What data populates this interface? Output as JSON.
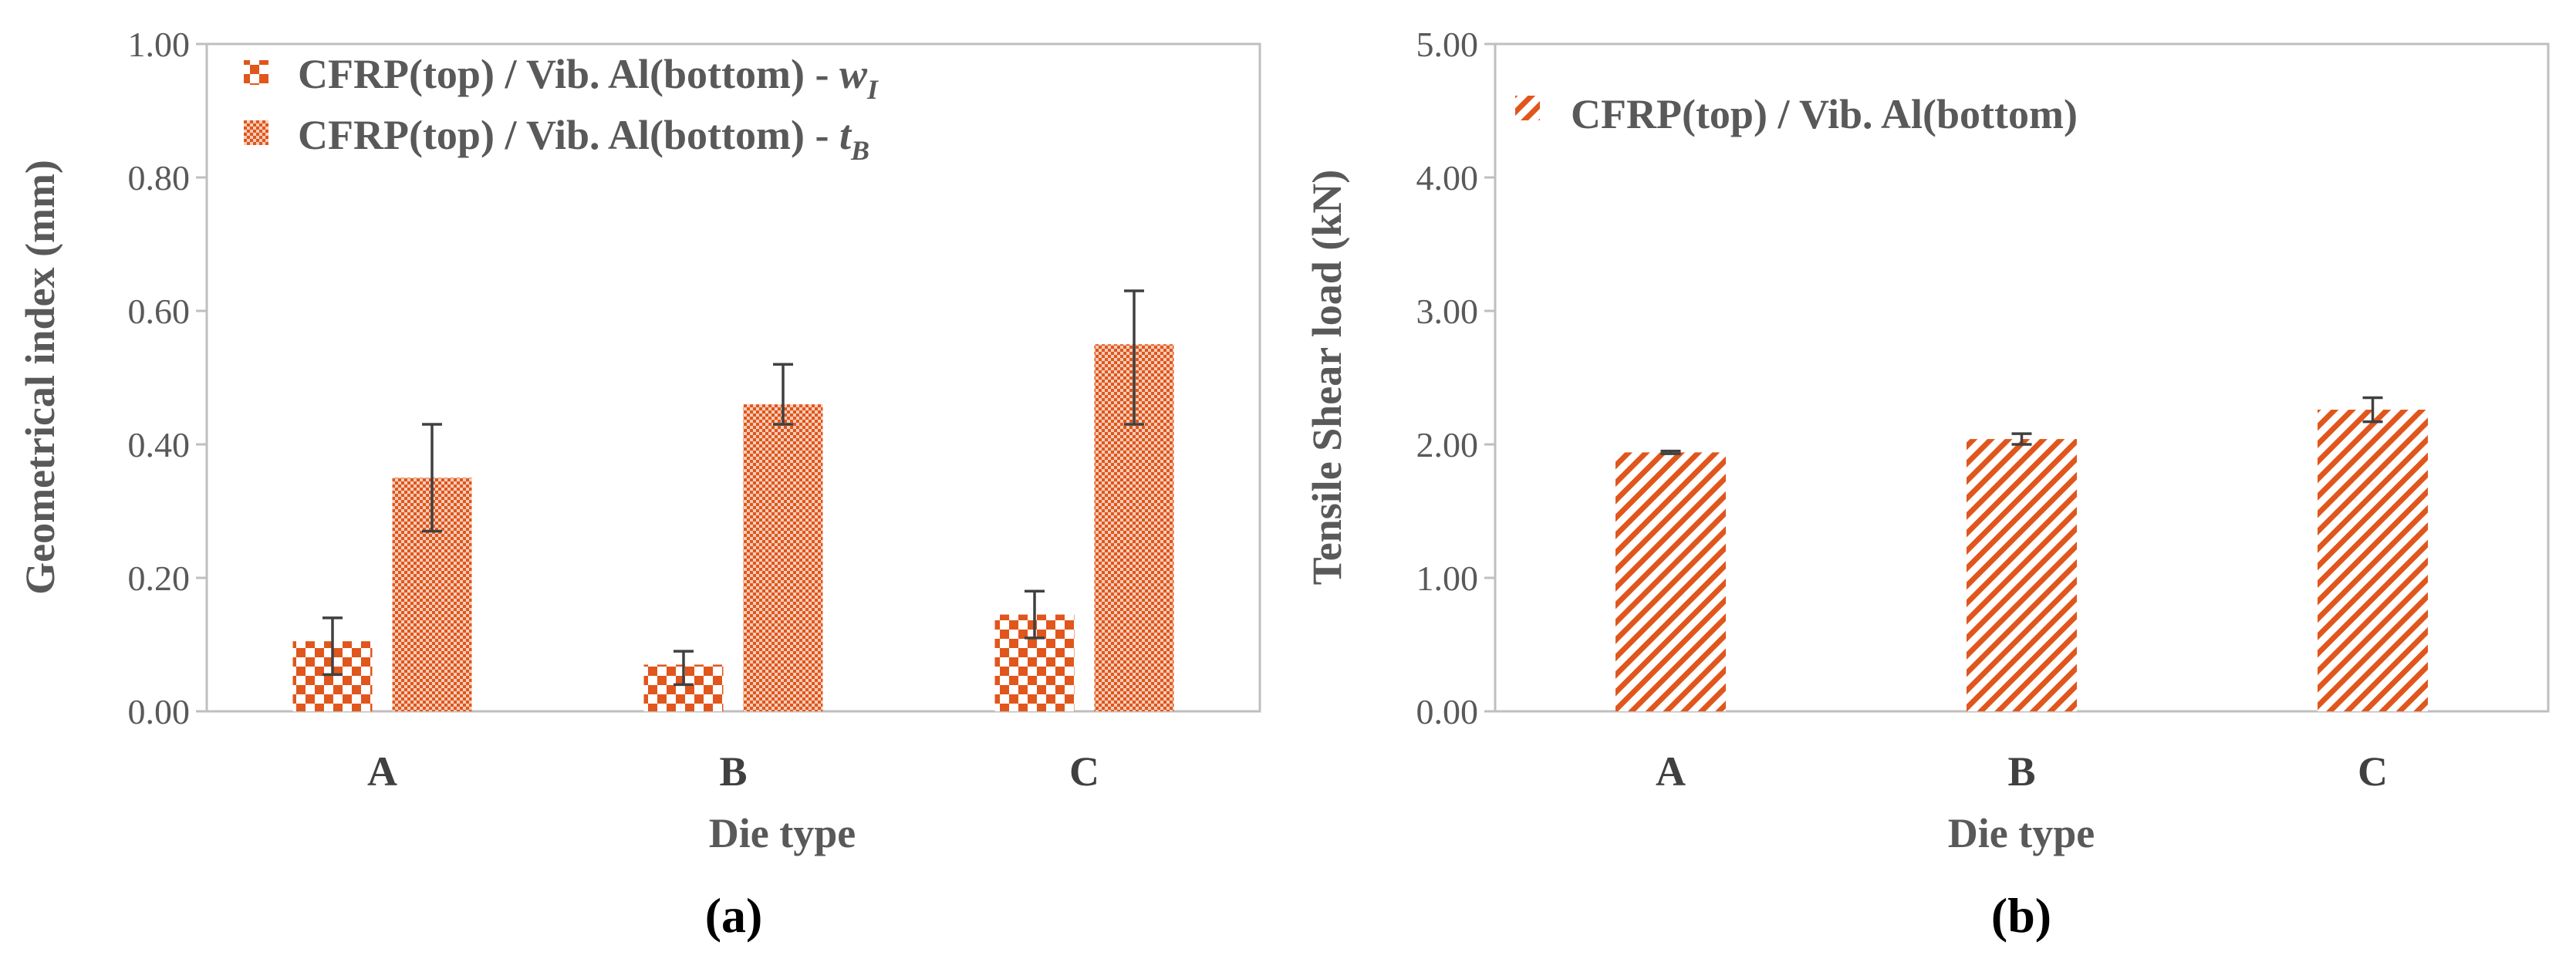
{
  "colors": {
    "series": "#e0561c",
    "axis": "#bfbfbf",
    "text": "#595959",
    "errorbar": "#404040"
  },
  "chart_data": [
    {
      "type": "bar",
      "panel_label": "(a)",
      "categories": [
        "A",
        "B",
        "C"
      ],
      "series": [
        {
          "name": "CFRP(top) / Vib. Al(bottom) - ",
          "symbol": "w",
          "subscript": "I",
          "pattern": "checker",
          "values": [
            0.105,
            0.07,
            0.145
          ],
          "err_low": [
            0.055,
            0.04,
            0.11
          ],
          "err_high": [
            0.14,
            0.09,
            0.18
          ]
        },
        {
          "name": "CFRP(top) / Vib. Al(bottom) - ",
          "symbol": "t",
          "subscript": "B",
          "pattern": "fine-checker",
          "values": [
            0.35,
            0.46,
            0.55
          ],
          "err_low": [
            0.27,
            0.43,
            0.43
          ],
          "err_high": [
            0.43,
            0.52,
            0.63
          ]
        }
      ],
      "xlabel": "Die type",
      "ylabel": "Geometrical index (mm)",
      "ylim": [
        0,
        1
      ],
      "yticks": [
        "0.00",
        "0.20",
        "0.40",
        "0.60",
        "0.80",
        "1.00"
      ],
      "legend_position": "top-left",
      "grid": false
    },
    {
      "type": "bar",
      "panel_label": "(b)",
      "categories": [
        "A",
        "B",
        "C"
      ],
      "series": [
        {
          "name": "CFRP(top) / Vib. Al(bottom)",
          "pattern": "diagonal-stripes",
          "values": [
            1.94,
            2.04,
            2.26
          ],
          "err_low": [
            1.93,
            2.0,
            2.17
          ],
          "err_high": [
            1.95,
            2.08,
            2.35
          ]
        }
      ],
      "xlabel": "Die type",
      "ylabel": "Tensile Shear load (kN)",
      "ylim": [
        0,
        5
      ],
      "yticks": [
        "0.00",
        "1.00",
        "2.00",
        "3.00",
        "4.00",
        "5.00"
      ],
      "legend_position": "top-left",
      "grid": false
    }
  ]
}
